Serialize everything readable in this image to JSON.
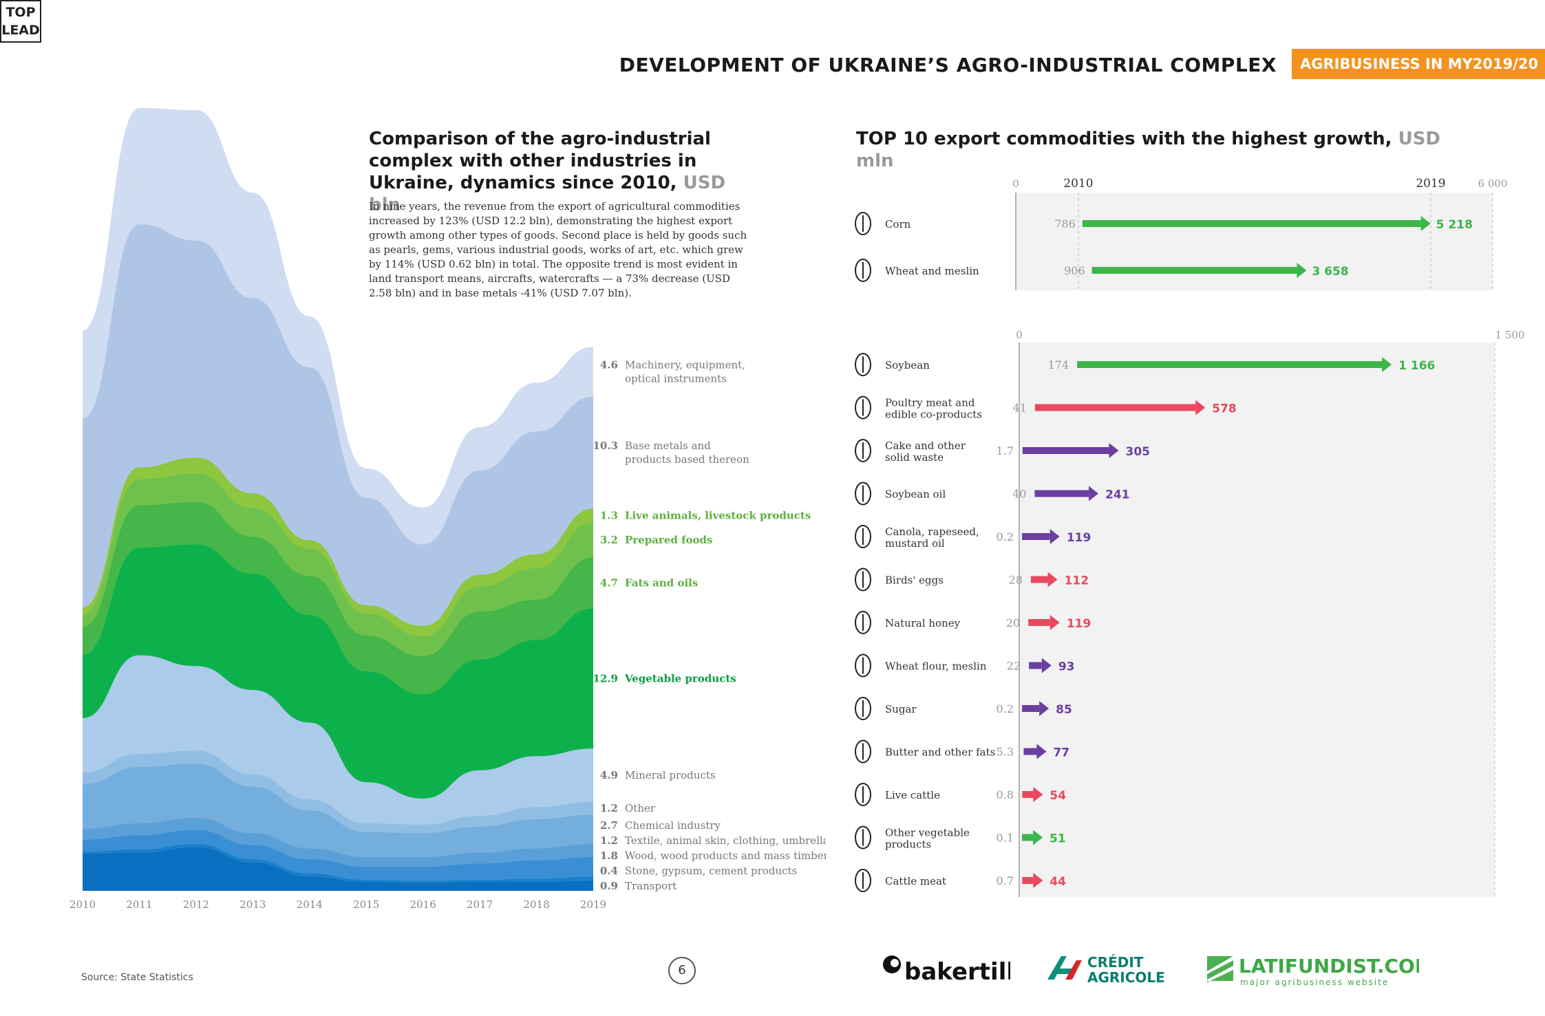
{
  "header": {
    "title": "DEVELOPMENT OF UKRAINE’S AGRO-INDUSTRIAL COMPLEX",
    "badge": "AGRIBUSINESS IN MY2019/20",
    "badge_color": "#f39220"
  },
  "left_chart": {
    "title_main": "Comparison of the agro-industrial complex with other industries in Ukraine, dynamics since 2010, ",
    "title_unit": "USD bln",
    "description": "In nine years, the revenue from the export of agricultural commodities increased by 123% (USD 12.2 bln), demonstrating the highest export growth among other types of goods. Second place is held by goods such as pearls, gems, various industrial goods, works of art, etc. which grew by 114% (USD 0.62 bln) in total. The opposite trend is most evident in land transport means, aircrafts, watercrafts — a 73% decrease (USD 2.58 bln) and in base metals -41% (USD 7.07 bln)."
  },
  "right_chart": {
    "title_main": "TOP 10 export commodities with the highest growth, ",
    "title_unit": "USD mln"
  },
  "chart_data": [
    {
      "type": "area",
      "stacked": true,
      "x": [
        "2010",
        "2011",
        "2012",
        "2013",
        "2014",
        "2015",
        "2016",
        "2017",
        "2018",
        "2019"
      ],
      "series_order_bottom_to_top": [
        "Transport",
        "Stone, gypsum, cement products",
        "Wood, wood products and mass timber",
        "Textile, animal skin, clothing, umbrellas",
        "Chemical industry",
        "Other",
        "Mineral products",
        "Vegetable products",
        "Fats and oils",
        "Prepared foods",
        "Live animals, livestock products",
        "Base metals and products based thereon",
        "Machinery, equipment, optical instruments"
      ],
      "series": [
        {
          "name": "Transport",
          "label_value": "0.9",
          "color": "#0a6fbe",
          "values": [
            3.4,
            3.5,
            4.0,
            2.6,
            1.3,
            0.8,
            0.7,
            0.8,
            0.8,
            0.9
          ]
        },
        {
          "name": "Stone, gypsum, cement products",
          "label_value": "0.4",
          "color": "#1a7fcc",
          "values": [
            0.2,
            0.3,
            0.3,
            0.3,
            0.3,
            0.2,
            0.2,
            0.2,
            0.3,
            0.4
          ]
        },
        {
          "name": "Wood, wood products and mass timber",
          "label_value": "1.8",
          "color": "#3a8fd4",
          "values": [
            1.1,
            1.3,
            1.3,
            1.3,
            1.3,
            1.2,
            1.3,
            1.5,
            1.7,
            1.8
          ]
        },
        {
          "name": "Textile, animal skin, clothing, umbrellas",
          "label_value": "1.2",
          "color": "#5a9fd8",
          "values": [
            1.0,
            1.1,
            1.1,
            1.1,
            1.0,
            0.9,
            0.9,
            1.0,
            1.1,
            1.2
          ]
        },
        {
          "name": "Chemical industry",
          "label_value": "2.7",
          "color": "#74aedc",
          "values": [
            4.1,
            5.2,
            5.0,
            4.3,
            3.5,
            2.3,
            2.2,
            2.4,
            2.7,
            2.7
          ]
        },
        {
          "name": "Other",
          "label_value": "1.2",
          "color": "#90bde3",
          "values": [
            1.1,
            1.2,
            1.2,
            1.1,
            1.0,
            0.8,
            0.8,
            1.0,
            1.1,
            1.2
          ]
        },
        {
          "name": "Mineral products",
          "label_value": "4.9",
          "color": "#abcbea",
          "values": [
            5.0,
            9.1,
            7.8,
            7.8,
            7.1,
            3.8,
            2.4,
            4.2,
            4.7,
            4.9
          ]
        },
        {
          "name": "Vegetable products",
          "label_value": "12.9",
          "color": "#0db14b",
          "values": [
            5.8,
            9.9,
            11.2,
            10.7,
            9.9,
            10.2,
            9.6,
            10.2,
            10.7,
            12.9
          ]
        },
        {
          "name": "Fats and oils",
          "label_value": "4.7",
          "color": "#45b649",
          "values": [
            2.6,
            3.9,
            3.9,
            3.4,
            3.6,
            3.3,
            3.5,
            4.4,
            3.7,
            4.7
          ]
        },
        {
          "name": "Prepared foods",
          "label_value": "3.2",
          "color": "#6ec14c",
          "values": [
            1.1,
            2.4,
            2.6,
            2.6,
            2.5,
            2.0,
            1.8,
            2.3,
            2.9,
            3.2
          ]
        },
        {
          "name": "Live animals, livestock products",
          "label_value": "1.3",
          "color": "#8dc63f",
          "values": [
            0.7,
            1.1,
            1.5,
            1.4,
            0.8,
            0.8,
            1.0,
            1.1,
            1.3,
            1.3
          ]
        },
        {
          "name": "Base metals and products based thereon",
          "label_value": "10.3",
          "color": "#aec5e6",
          "values": [
            17.4,
            22.4,
            20.0,
            18.0,
            15.9,
            9.9,
            7.5,
            9.6,
            11.3,
            10.3
          ]
        },
        {
          "name": "Machinery, equipment, optical instruments",
          "label_value": "4.6",
          "color": "#cfdcf1",
          "values": [
            8.1,
            10.7,
            12.0,
            9.7,
            4.7,
            2.7,
            3.4,
            4.0,
            4.5,
            4.6
          ]
        }
      ],
      "agro_groups": [
        "Live animals, livestock products",
        "Prepared foods",
        "Fats and oils",
        "Vegetable products"
      ]
    },
    {
      "type": "bar",
      "orientation": "horizontal",
      "years": [
        "2010",
        "2019"
      ],
      "xlim": [
        0,
        6000
      ],
      "tick_labels": [
        "0",
        "6 000"
      ],
      "categories": [
        "Corn",
        "Wheat and meslin"
      ],
      "values_2010": [
        786,
        906
      ],
      "values_2019": [
        5218,
        3658
      ],
      "value_labels_2010": [
        "786",
        "906"
      ],
      "value_labels_2019": [
        "5 218",
        "3 658"
      ],
      "colors": [
        "#3db54a",
        "#3db54a"
      ],
      "icons": [
        "corn-icon",
        "wheat-icon"
      ]
    },
    {
      "type": "bar",
      "orientation": "horizontal",
      "xlim": [
        0,
        1500
      ],
      "tick_labels": [
        "0",
        "1 500"
      ],
      "categories": [
        "Soybean",
        "Poultry meat and edible co-products",
        "Cake and other solid waste",
        "Soybean oil",
        "Canola, rapeseed, mustard oil",
        "Birds' eggs",
        "Natural honey",
        "Wheat flour, meslin",
        "Sugar",
        "Butter and other fats",
        "Live cattle",
        "Other vegetable products",
        "Cattle meat"
      ],
      "category_lines": [
        [
          "Soybean"
        ],
        [
          "Poultry meat and",
          "edible co-products"
        ],
        [
          "Cake and other",
          "solid waste"
        ],
        [
          "Soybean oil"
        ],
        [
          "Canola, rapeseed,",
          "mustard oil"
        ],
        [
          "Birds' eggs"
        ],
        [
          "Natural honey"
        ],
        [
          "Wheat flour, meslin"
        ],
        [
          "Sugar"
        ],
        [
          "Butter and other fats"
        ],
        [
          "Live cattle"
        ],
        [
          "Other vegetable",
          "products"
        ],
        [
          "Cattle meat"
        ]
      ],
      "values_2010": [
        174,
        41,
        1.7,
        40,
        0.2,
        28,
        20,
        22,
        0.2,
        5.3,
        0.8,
        0.1,
        0.7
      ],
      "values_2019": [
        1166,
        578,
        305,
        241,
        119,
        112,
        119,
        93,
        85,
        77,
        54,
        51,
        44
      ],
      "value_labels_2010": [
        "174",
        "41",
        "1.7",
        "40",
        "0.2",
        "28",
        "20",
        "22",
        "0.2",
        "5.3",
        "0.8",
        "0.1",
        "0.7"
      ],
      "value_labels_2019": [
        "1 166",
        "578",
        "305",
        "241",
        "119",
        "112",
        "119",
        "93",
        "85",
        "77",
        "54",
        "51",
        "44"
      ],
      "colors": [
        "#3db54a",
        "#e8495e",
        "#6b3fa0",
        "#6b3fa0",
        "#6b3fa0",
        "#e8495e",
        "#e8495e",
        "#6b3fa0",
        "#6b3fa0",
        "#6b3fa0",
        "#e8495e",
        "#3db54a",
        "#e8495e"
      ],
      "icons": [
        "soybean-icon",
        "chicken-icon",
        "sack-icon",
        "oil-drop-icon",
        "oil-drop-icon",
        "egg-icon",
        "bee-icon",
        "flour-bag-icon",
        "sugar-cube-icon",
        "butter-icon",
        "cow-icon",
        "plant-icon",
        "steak-icon"
      ]
    }
  ],
  "footer": {
    "source": "Source: State Statistics",
    "page": "6",
    "logos": {
      "bakertilly": "bakertilly",
      "ca_line1": "CRÉDIT",
      "ca_line2": "AGRICOLE",
      "latifundist": "LATIFUNDIST.COM",
      "latifundist_sub": "major agribusiness website",
      "toplead_line1": "TOP",
      "toplead_line2": "LEAD"
    }
  }
}
